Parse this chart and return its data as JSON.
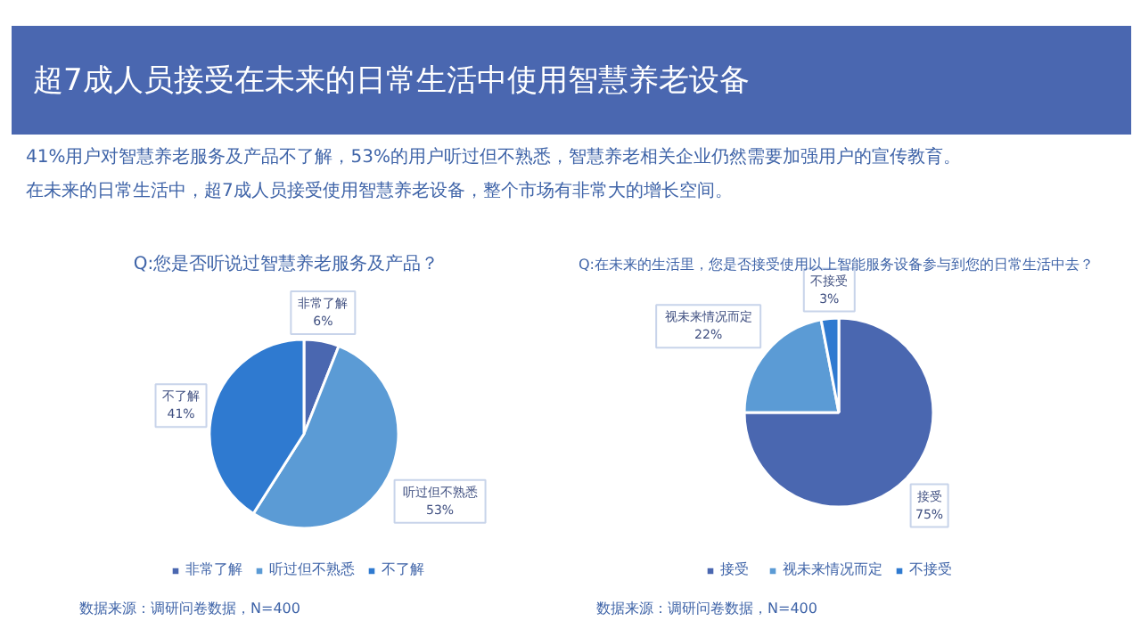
{
  "chart_data": [
    {
      "type": "other",
      "title": "超7成人员接受在未来的日常生活中使用智慧养老设备",
      "annotations": [
        "41%用户对智慧养老服务及产品不了解，53%的用户听过但不熟悉，智慧养老相关企业仍然需要加强用户的宣传教育。",
        "在未来的日常生活中，超7成人员接受使用智慧养老设备，整个市场有非常大的增长空间。"
      ]
    },
    {
      "type": "pie",
      "title": "Q:您是否听说过智慧养老服务及产品？",
      "categories": [
        "非常了解",
        "听过但不熟悉",
        "不了解"
      ],
      "values": [
        6,
        53,
        41
      ],
      "colors": [
        "#4a67b0",
        "#5b9bd5",
        "#2f7ad0"
      ],
      "value_labels": [
        "6%",
        "53%",
        "41%"
      ],
      "legend": "bottom",
      "annotations": [
        "数据来源：调研问卷数据，N=400"
      ]
    },
    {
      "type": "pie",
      "title": "Q:在未来的生活里，您是否接受使用以上智能服务设备参与到您的日常生活中去？",
      "categories": [
        "接受",
        "视未来情况而定",
        "不接受"
      ],
      "values": [
        75,
        22,
        3
      ],
      "colors": [
        "#4a67b0",
        "#5b9bd5",
        "#2f7ad0"
      ],
      "value_labels": [
        "75%",
        "22%",
        "3%"
      ],
      "legend": "bottom",
      "annotations": [
        "数据来源：调研问卷数据，N=400"
      ]
    }
  ]
}
